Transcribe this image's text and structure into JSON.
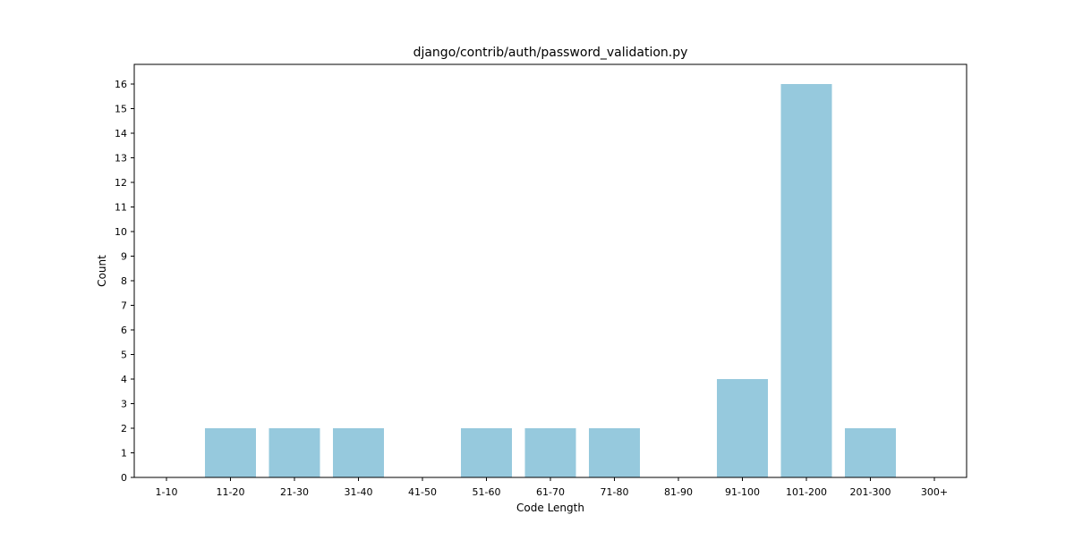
{
  "chart_data": {
    "type": "bar",
    "title": "django/contrib/auth/password_validation.py",
    "xlabel": "Code Length",
    "ylabel": "Count",
    "categories": [
      "1-10",
      "11-20",
      "21-30",
      "31-40",
      "41-50",
      "51-60",
      "61-70",
      "71-80",
      "81-90",
      "91-100",
      "101-200",
      "201-300",
      "300+"
    ],
    "values": [
      0,
      2,
      2,
      2,
      0,
      2,
      2,
      2,
      0,
      4,
      16,
      2,
      0
    ],
    "ylim": [
      0,
      16.8
    ],
    "yticks": [
      0,
      1,
      2,
      3,
      4,
      5,
      6,
      7,
      8,
      9,
      10,
      11,
      12,
      13,
      14,
      15,
      16
    ],
    "bar_color": "#96c9dd",
    "grid": false,
    "legend": "none"
  }
}
